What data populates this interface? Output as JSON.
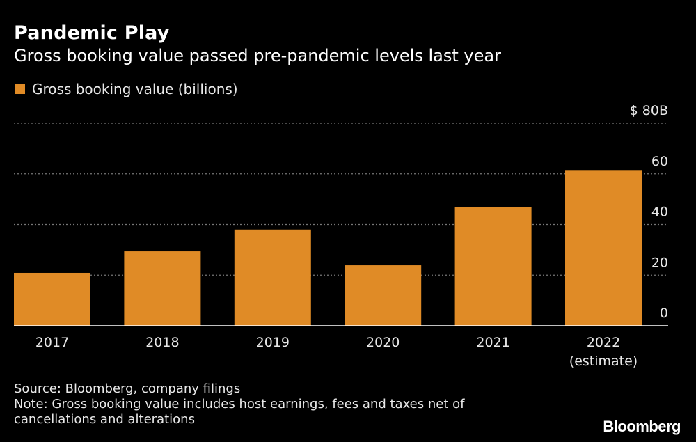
{
  "title": "Pandemic Play",
  "subtitle": "Gross booking value passed pre-pandemic levels last year",
  "colors": {
    "bar": "#E08B26",
    "background": "#000000",
    "grid": "#777777",
    "text": "#e8e8e8"
  },
  "chart_data": {
    "type": "bar",
    "categories": [
      "2017",
      "2018",
      "2019",
      "2020",
      "2021",
      "2022"
    ],
    "category_sublabels": [
      "",
      "",
      "",
      "",
      "",
      "(estimate)"
    ],
    "series": [
      {
        "name": "Gross booking value (billions)",
        "values": [
          20.9,
          29.4,
          38.0,
          23.9,
          46.9,
          61.5
        ]
      }
    ],
    "ylim": [
      0,
      80
    ],
    "yticks": [
      0,
      20,
      40,
      60,
      80
    ],
    "ytick_labels": [
      "0",
      "20",
      "40",
      "60",
      "$ 80B"
    ],
    "grid": true,
    "legend": "top-left"
  },
  "source": "Source: Bloomberg, company filings",
  "note_line1": "Note: Gross booking value includes host earnings, fees and taxes net of",
  "note_line2": "cancellations and alterations",
  "brand": "Bloomberg"
}
